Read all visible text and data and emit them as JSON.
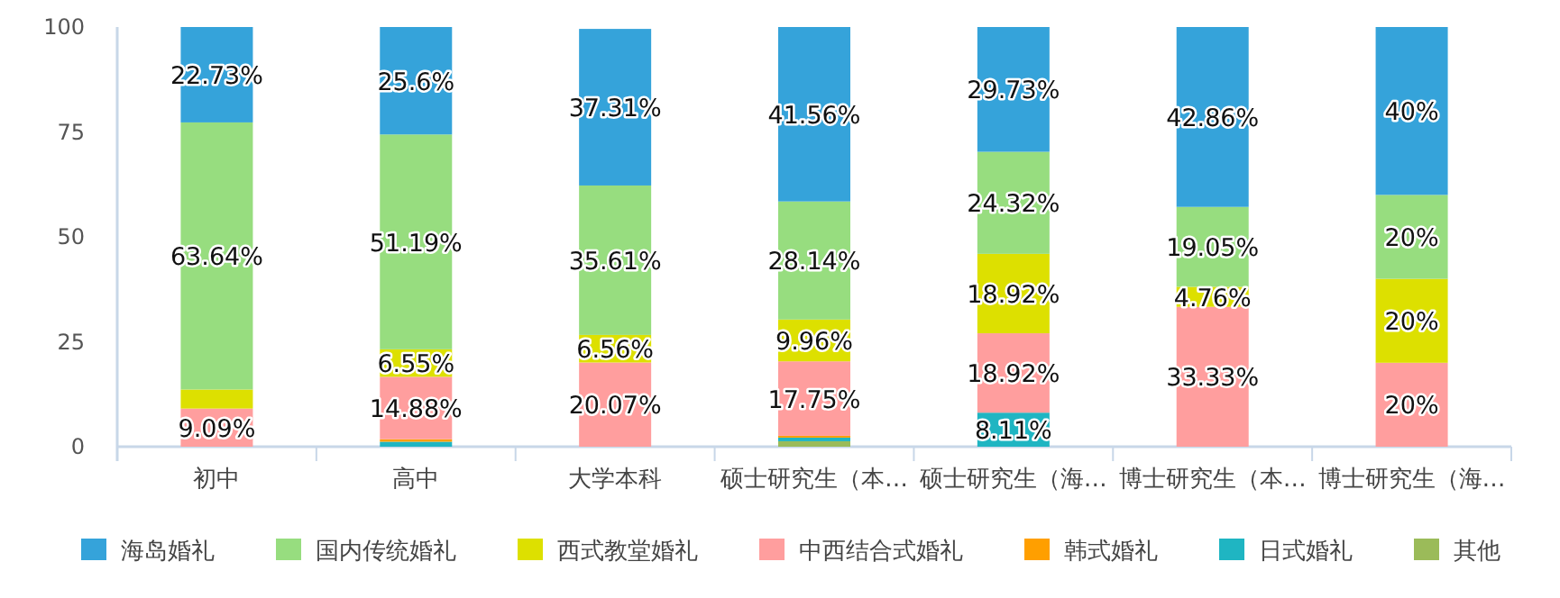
{
  "chart_data": {
    "type": "bar",
    "stacked": true,
    "categories": [
      "初中",
      "高中",
      "大学本科",
      "硕士研究生（本…",
      "硕士研究生（海…",
      "博士研究生（本…",
      "博士研究生（海…"
    ],
    "ylim": [
      0,
      100
    ],
    "yticks": [
      0,
      25,
      50,
      75,
      100
    ],
    "grid": false,
    "legend": "bottom",
    "series": [
      {
        "name": "其他",
        "color": "#9bbb59",
        "values": [
          null,
          null,
          null,
          1.3,
          null,
          null,
          null
        ],
        "value_labels": [
          null,
          null,
          null,
          null,
          null,
          null,
          null
        ]
      },
      {
        "name": "日式婚礼",
        "color": "#1fb5c2",
        "values": [
          null,
          1.19,
          null,
          0.86,
          8.11,
          null,
          null
        ],
        "value_labels": [
          null,
          null,
          null,
          null,
          "8.11%",
          null,
          null
        ]
      },
      {
        "name": "韩式婚礼",
        "color": "#ff9f00",
        "values": [
          null,
          0.59,
          null,
          0.43,
          null,
          null,
          null
        ],
        "value_labels": [
          null,
          null,
          null,
          null,
          null,
          null,
          null
        ]
      },
      {
        "name": "中西结合式婚礼",
        "color": "#ff9e9e",
        "values": [
          9.09,
          14.88,
          20.07,
          17.75,
          18.92,
          33.33,
          20
        ],
        "value_labels": [
          "9.09%",
          "14.88%",
          "20.07%",
          "17.75%",
          "18.92%",
          "33.33%",
          "20%"
        ]
      },
      {
        "name": "西式教堂婚礼",
        "color": "#dde000",
        "values": [
          4.54,
          6.55,
          6.56,
          9.96,
          18.92,
          4.76,
          20
        ],
        "value_labels": [
          null,
          "6.55%",
          "6.56%",
          "9.96%",
          "18.92%",
          "4.76%",
          "20%"
        ]
      },
      {
        "name": "国内传统婚礼",
        "color": "#97dd7f",
        "values": [
          63.64,
          51.19,
          35.61,
          28.14,
          24.32,
          19.05,
          20
        ],
        "value_labels": [
          "63.64%",
          "51.19%",
          "35.61%",
          "28.14%",
          "24.32%",
          "19.05%",
          "20%"
        ]
      },
      {
        "name": "海岛婚礼",
        "color": "#35a3da",
        "values": [
          22.73,
          25.6,
          37.31,
          41.56,
          29.73,
          42.86,
          40
        ],
        "value_labels": [
          "22.73%",
          "25.6%",
          "37.31%",
          "41.56%",
          "29.73%",
          "42.86%",
          "40%"
        ]
      }
    ]
  }
}
